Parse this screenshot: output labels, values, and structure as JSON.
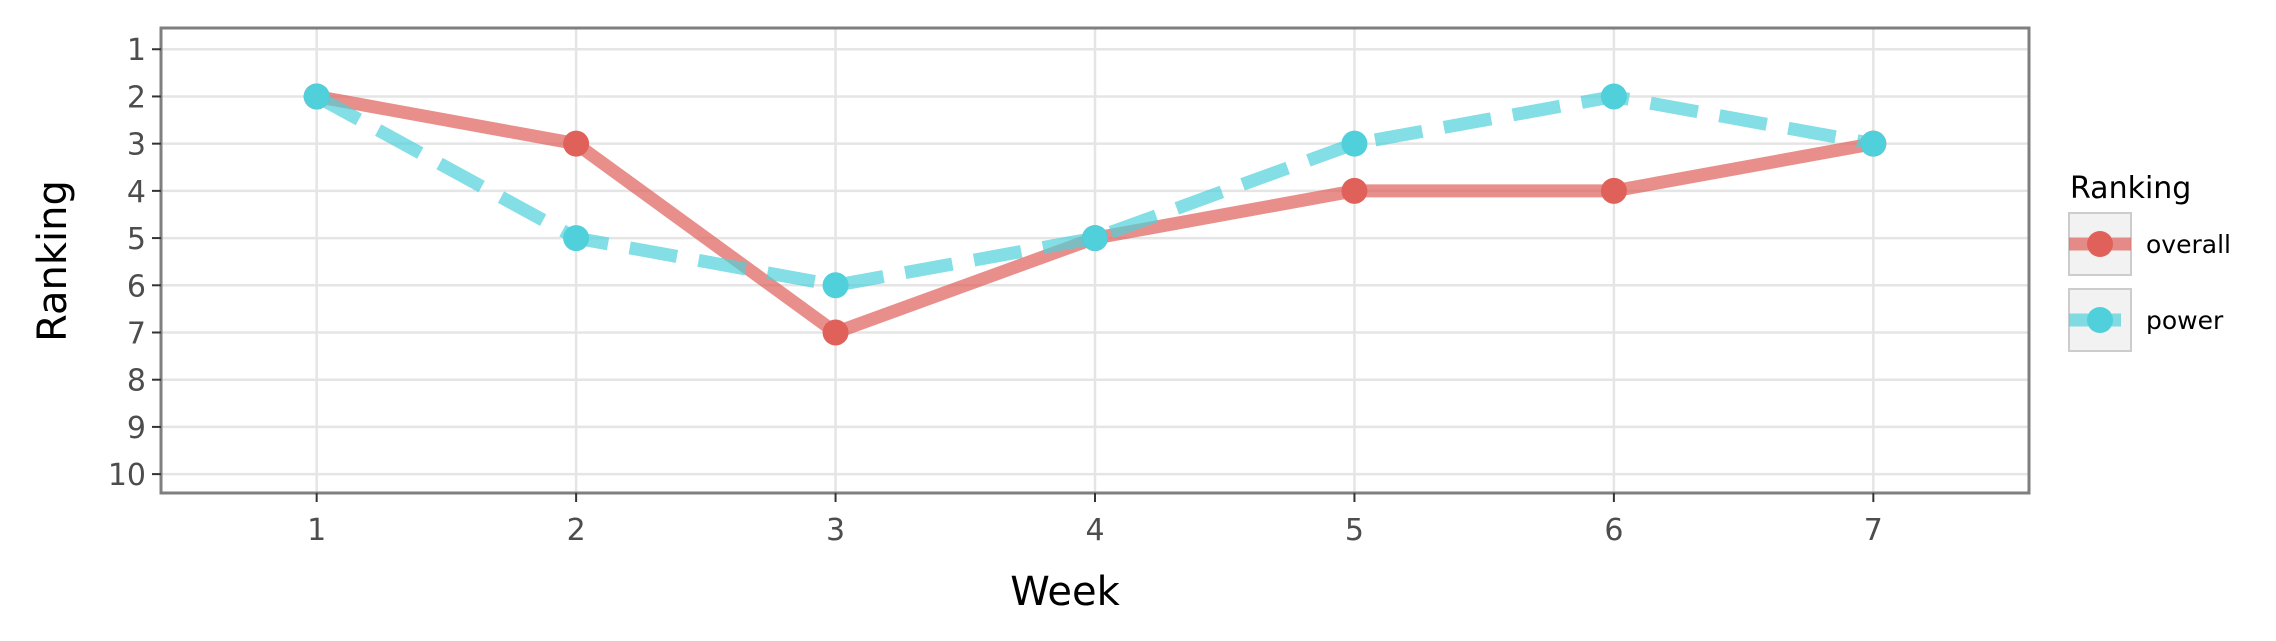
{
  "chart_data": {
    "type": "line",
    "xlabel": "Week",
    "ylabel": "Ranking",
    "x": [
      1,
      2,
      3,
      4,
      5,
      6,
      7
    ],
    "xlim": [
      0.4,
      7.6
    ],
    "ylim": [
      10.4,
      0.55
    ],
    "y_reversed": true,
    "x_ticks": [
      1,
      2,
      3,
      4,
      5,
      6,
      7
    ],
    "y_ticks": [
      1,
      2,
      3,
      4,
      5,
      6,
      7,
      8,
      9,
      10
    ],
    "grid": true,
    "legend_position": "right",
    "legend_title": "Ranking",
    "series": [
      {
        "name": "overall",
        "values": [
          2,
          3,
          7,
          5,
          4,
          4,
          3
        ],
        "color": "#e0605a",
        "line_style": "solid"
      },
      {
        "name": "power",
        "values": [
          2,
          5,
          6,
          5,
          3,
          2,
          3
        ],
        "color": "#4fd0da",
        "line_style": "dashed"
      }
    ]
  }
}
